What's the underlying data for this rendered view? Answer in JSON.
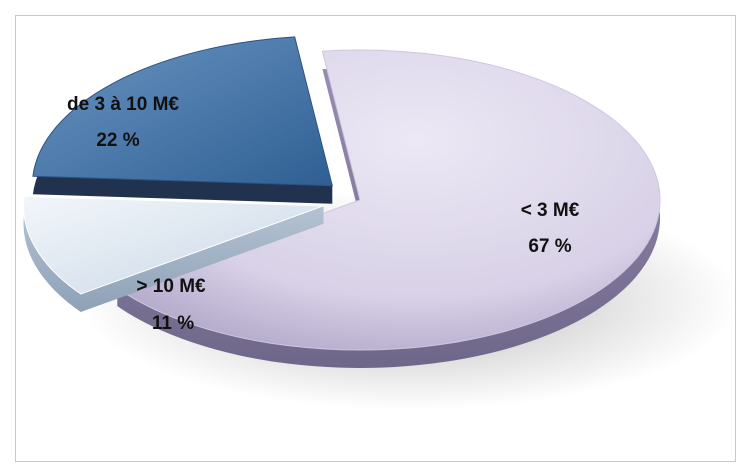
{
  "chart_data": {
    "type": "pie",
    "title": "",
    "slices": [
      {
        "label": "< 3 M€",
        "value": 67,
        "value_label": "67 %",
        "color": "#d9d3e8",
        "exploded": false
      },
      {
        "label": "> 10 M€",
        "value": 11,
        "value_label": "11 %",
        "color": "#dfe8f1",
        "exploded": true
      },
      {
        "label": "de 3 à 10 M€",
        "value": 22,
        "value_label": "22 %",
        "color": "#4f7eb0",
        "exploded": true
      }
    ],
    "style": "3d-exploded"
  }
}
